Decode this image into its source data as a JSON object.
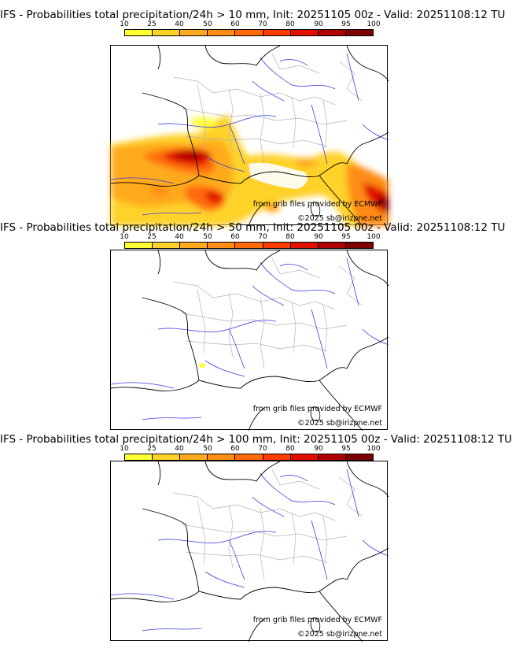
{
  "colorbar": {
    "ticks": [
      "10",
      "25",
      "40",
      "50",
      "60",
      "70",
      "80",
      "90",
      "95",
      "100"
    ],
    "colors": [
      "#ffff33",
      "#ffd22a",
      "#ffaa1e",
      "#ff8c14",
      "#ff6a0a",
      "#ff3c00",
      "#e01000",
      "#b00000",
      "#800000"
    ]
  },
  "credits": {
    "source": "from grib files provided by ECMWF",
    "copyright": "©2025 sb@irizpne.net"
  },
  "panels": [
    {
      "title": "IFS - Probabilities total precipitation/24h > 10 mm, Init: 20251105 00z - Valid: 20251108:12 TU"
    },
    {
      "title": "IFS - Probabilities total precipitation/24h > 50 mm, Init: 20251105 00z - Valid: 20251108:12 TU"
    },
    {
      "title": "IFS - Probabilities total precipitation/24h > 100 mm, Init: 20251105 00z - Valid: 20251108:12 TU"
    }
  ]
}
